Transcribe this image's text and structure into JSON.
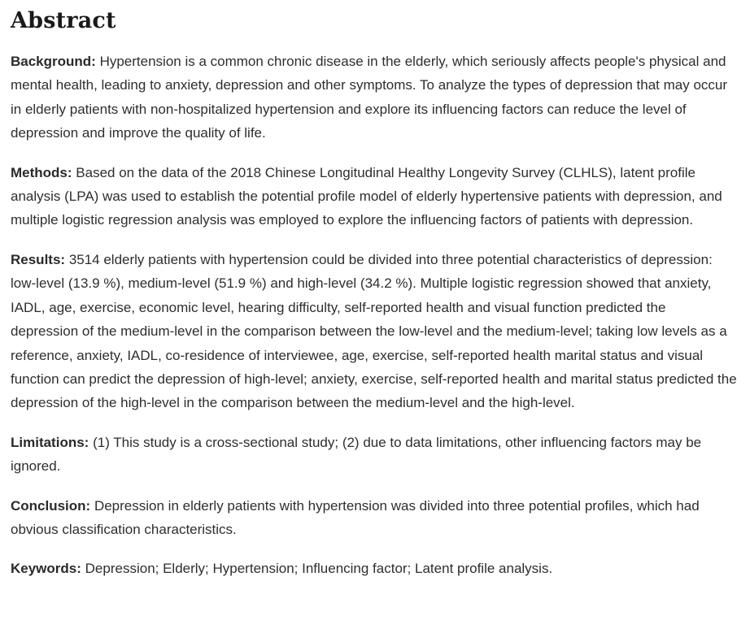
{
  "abstract": {
    "heading": "Abstract",
    "paragraphs": [
      {
        "label": "Background:",
        "text": "Hypertension is a common chronic disease in the elderly, which seriously affects people's physical and mental health, leading to anxiety, depression and other symptoms. To analyze the types of depression that may occur in elderly patients with non-hospitalized hypertension and explore its influencing factors can reduce the level of depression and improve the quality of life."
      },
      {
        "label": "Methods:",
        "text": "Based on the data of the 2018 Chinese Longitudinal Healthy Longevity Survey (CLHLS), latent profile analysis (LPA) was used to establish the potential profile model of elderly hypertensive patients with depression, and multiple logistic regression analysis was employed to explore the influencing factors of patients with depression."
      },
      {
        "label": "Results:",
        "text": "3514 elderly patients with hypertension could be divided into three potential characteristics of depression: low-level (13.9 %), medium-level (51.9 %) and high-level (34.2 %). Multiple logistic regression showed that anxiety, IADL, age, exercise, economic level, hearing difficulty, self-reported health and visual function predicted the depression of the medium-level in the comparison between the low-level and the medium-level; taking low levels as a reference, anxiety, IADL, co-residence of interviewee, age, exercise, self-reported health marital status and visual function can predict the depression of high-level; anxiety, exercise, self-reported health and marital status predicted the depression of the high-level in the comparison between the medium-level and the high-level."
      },
      {
        "label": "Limitations:",
        "text": "(1) This study is a cross-sectional study; (2) due to data limitations, other influencing factors may be ignored."
      },
      {
        "label": "Conclusion:",
        "text": "Depression in elderly patients with hypertension was divided into three potential profiles, which had obvious classification characteristics."
      },
      {
        "label": "Keywords:",
        "text": "Depression; Elderly; Hypertension; Influencing factor; Latent profile analysis."
      }
    ]
  },
  "colors": {
    "background": "#ffffff",
    "heading_text": "#1a1a1a",
    "body_text": "#2e2e2e"
  }
}
